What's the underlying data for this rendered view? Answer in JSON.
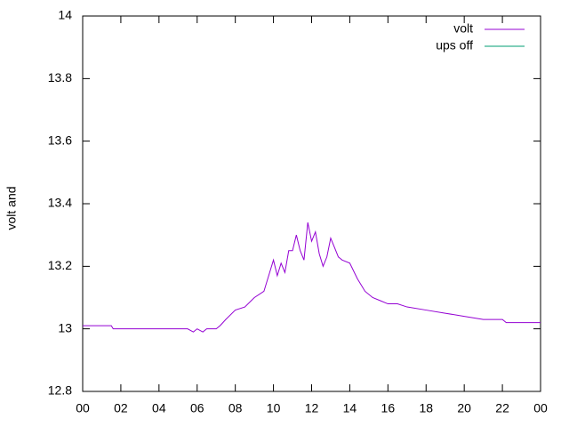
{
  "chart_data": {
    "type": "line",
    "ylabel": "volt and",
    "x": [
      0,
      1.5,
      1.6,
      3,
      5.5,
      5.8,
      6,
      6.3,
      6.5,
      7,
      7.2,
      7.5,
      8,
      8.5,
      9,
      9.5,
      9.8,
      10,
      10.2,
      10.4,
      10.6,
      10.8,
      11,
      11.2,
      11.4,
      11.6,
      11.8,
      12,
      12.2,
      12.4,
      12.6,
      12.8,
      13,
      13.2,
      13.4,
      13.6,
      14,
      14.4,
      14.8,
      15.2,
      15.6,
      16,
      16.5,
      17,
      18,
      19,
      20,
      21,
      22,
      22.2,
      23,
      24
    ],
    "series": [
      {
        "name": "volt",
        "color": "#9400d3",
        "values": [
          13.01,
          13.01,
          13.0,
          13.0,
          13.0,
          12.99,
          13.0,
          12.99,
          13.0,
          13.0,
          13.01,
          13.03,
          13.06,
          13.07,
          13.1,
          13.12,
          13.18,
          13.22,
          13.17,
          13.21,
          13.18,
          13.25,
          13.25,
          13.3,
          13.25,
          13.22,
          13.34,
          13.28,
          13.31,
          13.24,
          13.2,
          13.23,
          13.29,
          13.26,
          13.23,
          13.22,
          13.21,
          13.16,
          13.12,
          13.1,
          13.09,
          13.08,
          13.08,
          13.07,
          13.06,
          13.05,
          13.04,
          13.03,
          13.03,
          13.02,
          13.02,
          13.02
        ]
      },
      {
        "name": "ups off",
        "color": "#009e73",
        "values": [
          null,
          null,
          null,
          null,
          null,
          null,
          null,
          null,
          null,
          null,
          null,
          null,
          null,
          null,
          null,
          null,
          null,
          null,
          null,
          null,
          null,
          null,
          null,
          null,
          null,
          null,
          null,
          null,
          null,
          null,
          null,
          null,
          null,
          null,
          null,
          null,
          null,
          null,
          null,
          null,
          null,
          null,
          null,
          null,
          null,
          null,
          null,
          null,
          null,
          null,
          null,
          null
        ]
      }
    ],
    "xlim": [
      0,
      24
    ],
    "xticks": [
      {
        "value": 0,
        "label": "00"
      },
      {
        "value": 2,
        "label": "02"
      },
      {
        "value": 4,
        "label": "04"
      },
      {
        "value": 6,
        "label": "06"
      },
      {
        "value": 8,
        "label": "08"
      },
      10,
      12,
      14,
      16,
      18,
      20,
      22,
      {
        "value": 24,
        "label": "00"
      }
    ],
    "ylim": [
      12.8,
      14
    ],
    "yticks": [
      12.8,
      13,
      13.2,
      13.4,
      13.6,
      13.8,
      14
    ],
    "grid": false,
    "legend": "top-right"
  }
}
